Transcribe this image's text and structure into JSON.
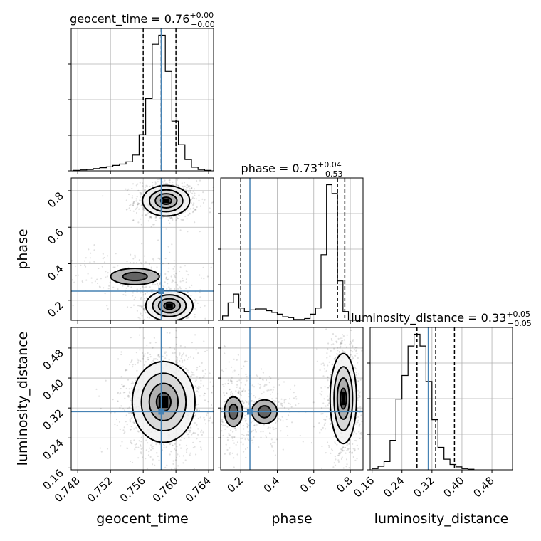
{
  "chart_data": {
    "type": "corner",
    "parameters": [
      "geocent_time",
      "phase",
      "luminosity_distance"
    ],
    "truths": {
      "geocent_time": 0.7582,
      "phase": 0.25,
      "luminosity_distance": 0.31
    },
    "truth_color": "#4682b4",
    "axes": {
      "geocent_time": {
        "range": [
          0.7472,
          0.7646
        ],
        "ticks": [
          0.748,
          0.752,
          0.756,
          0.76,
          0.764
        ],
        "tick_labels": [
          "0.748",
          "0.752",
          "0.756",
          "0.760",
          "0.764"
        ]
      },
      "phase": {
        "range": [
          0.09,
          0.87
        ],
        "ticks": [
          0.2,
          0.4,
          0.6,
          0.8
        ],
        "tick_labels": [
          "0.2",
          "0.4",
          "0.6",
          "0.8"
        ]
      },
      "luminosity_distance": {
        "range": [
          0.155,
          0.535
        ],
        "ticks": [
          0.16,
          0.24,
          0.32,
          0.4,
          0.48
        ],
        "tick_labels": [
          "0.16",
          "0.24",
          "0.32",
          "0.40",
          "0.48"
        ]
      }
    },
    "diagonal": [
      {
        "param": "geocent_time",
        "title_name": "geocent_time",
        "title_value": "0.76",
        "title_plus": "+0.00",
        "title_minus": "−0.00",
        "quantiles": [
          0.756,
          0.7582,
          0.76
        ],
        "bins": {
          "start": 0.7475,
          "width": 0.0008,
          "heights": [
            1,
            2,
            3,
            5,
            7,
            9,
            12,
            15,
            20,
            35,
            80,
            160,
            280,
            300,
            220,
            110,
            58,
            25,
            8,
            3,
            1
          ]
        }
      },
      {
        "param": "phase",
        "title_name": "phase",
        "title_value": "0.73",
        "title_plus": "+0.04",
        "title_minus": "−0.53",
        "quantiles": [
          0.2,
          0.73,
          0.77
        ],
        "bins": {
          "start": 0.1,
          "width": 0.03,
          "heights": [
            10,
            40,
            60,
            28,
            20,
            24,
            26,
            26,
            22,
            18,
            14,
            8,
            6,
            2,
            2,
            4,
            14,
            28,
            150,
            310,
            290,
            90,
            20
          ]
        }
      },
      {
        "param": "luminosity_distance",
        "title_name": "luminosity_distance",
        "title_value": "0.33",
        "title_plus": "+0.05",
        "title_minus": "−0.05",
        "quantiles": [
          0.28,
          0.33,
          0.38
        ],
        "bins": {
          "start": 0.16,
          "width": 0.016,
          "heights": [
            2,
            6,
            14,
            50,
            120,
            160,
            210,
            230,
            210,
            150,
            85,
            38,
            18,
            9,
            5,
            2,
            1
          ]
        }
      }
    ],
    "pairs": [
      {
        "x": "geocent_time",
        "y": "phase",
        "modes": [
          {
            "cx": 0.7588,
            "cy": 0.745,
            "sx": 0.0012,
            "sy": 0.035,
            "w": 0.55
          },
          {
            "cx": 0.755,
            "cy": 0.33,
            "sx": 0.003,
            "sy": 0.045,
            "w": 0.18
          },
          {
            "cx": 0.7592,
            "cy": 0.17,
            "sx": 0.0012,
            "sy": 0.035,
            "w": 0.27
          }
        ]
      },
      {
        "x": "geocent_time",
        "y": "luminosity_distance",
        "modes": [
          {
            "cx": 0.7585,
            "cy": 0.336,
            "sx": 0.0016,
            "sy": 0.045,
            "w": 1.0
          }
        ]
      },
      {
        "x": "phase",
        "y": "luminosity_distance",
        "modes": [
          {
            "cx": 0.762,
            "cy": 0.345,
            "sx": 0.03,
            "sy": 0.05,
            "w": 0.66
          },
          {
            "cx": 0.16,
            "cy": 0.31,
            "sx": 0.05,
            "sy": 0.04,
            "w": 0.2
          },
          {
            "cx": 0.33,
            "cy": 0.31,
            "sx": 0.07,
            "sy": 0.032,
            "w": 0.14
          }
        ]
      }
    ]
  }
}
